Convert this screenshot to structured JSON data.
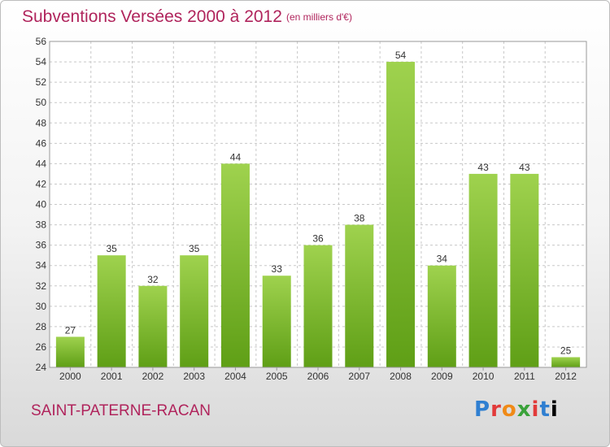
{
  "chart_data": {
    "type": "bar",
    "title": "Subventions Versées 2000 à 2012",
    "subtitle": "(en milliers d'€)",
    "categories": [
      "2000",
      "2001",
      "2002",
      "2003",
      "2004",
      "2005",
      "2006",
      "2007",
      "2008",
      "2009",
      "2010",
      "2011",
      "2012"
    ],
    "values": [
      27,
      35,
      32,
      35,
      44,
      33,
      36,
      38,
      54,
      34,
      43,
      43,
      25
    ],
    "ylim": [
      24,
      56
    ],
    "yticks": [
      24,
      26,
      28,
      30,
      32,
      34,
      36,
      38,
      40,
      42,
      44,
      46,
      48,
      50,
      52,
      54,
      56
    ],
    "grid": true,
    "bar_color": "#7dbd2f"
  },
  "location": "SAINT-PATERNE-RACAN",
  "logo_letters": [
    "P",
    "r",
    "o",
    "x",
    "i",
    "t",
    "i"
  ]
}
